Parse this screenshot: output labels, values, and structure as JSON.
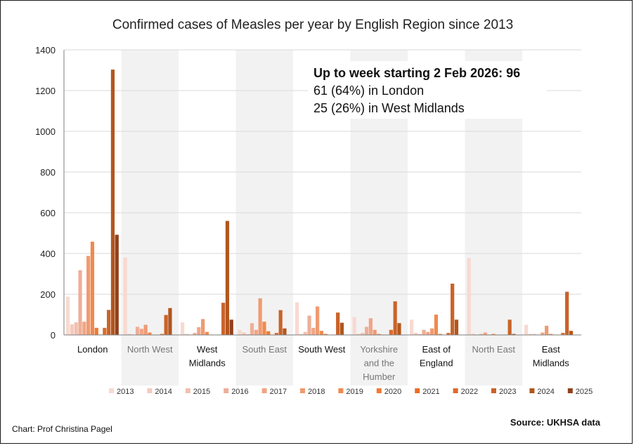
{
  "chart_data": {
    "type": "bar",
    "title": "Confirmed cases of Measles per year by English Region since 2013",
    "xlabel": "",
    "ylabel": "",
    "ylim": [
      0,
      1400
    ],
    "yticks": [
      0,
      200,
      400,
      600,
      800,
      1000,
      1200,
      1400
    ],
    "grid": true,
    "legend_position": "bottom",
    "categories": [
      "London",
      "North West",
      "West Midlands",
      "South East",
      "South West",
      "Yorkshire and the Humber",
      "East of England",
      "North East",
      "East Midlands"
    ],
    "category_lines": [
      [
        "London"
      ],
      [
        "North West"
      ],
      [
        "West",
        "Midlands"
      ],
      [
        "South East"
      ],
      [
        "South West"
      ],
      [
        "Yorkshire",
        "and the",
        "Humber"
      ],
      [
        "East of",
        "England"
      ],
      [
        "North East"
      ],
      [
        "East",
        "Midlands"
      ]
    ],
    "series": [
      {
        "name": "2013",
        "color": "#f8d9d0",
        "values": [
          188,
          380,
          62,
          25,
          160,
          88,
          75,
          378,
          50
        ]
      },
      {
        "name": "2014",
        "color": "#f4cabd",
        "values": [
          52,
          5,
          5,
          12,
          5,
          5,
          10,
          5,
          5
        ]
      },
      {
        "name": "2015",
        "color": "#f1c0ae",
        "values": [
          62,
          2,
          2,
          4,
          15,
          10,
          5,
          2,
          5
        ]
      },
      {
        "name": "2016",
        "color": "#eeae98",
        "values": [
          318,
          40,
          10,
          58,
          95,
          40,
          25,
          5,
          2
        ]
      },
      {
        "name": "2017",
        "color": "#f1a585",
        "values": [
          65,
          30,
          38,
          25,
          35,
          82,
          15,
          12,
          12
        ]
      },
      {
        "name": "2018",
        "color": "#ef9a72",
        "values": [
          388,
          50,
          78,
          180,
          140,
          25,
          32,
          2,
          45
        ]
      },
      {
        "name": "2019",
        "color": "#f08a4e",
        "values": [
          458,
          12,
          15,
          65,
          20,
          5,
          100,
          5,
          5
        ]
      },
      {
        "name": "2020",
        "color": "#f07a32",
        "values": [
          35,
          2,
          2,
          18,
          5,
          2,
          5,
          2,
          2
        ]
      },
      {
        "name": "2021",
        "color": "#ec6d25",
        "values": [
          2,
          0,
          0,
          2,
          0,
          0,
          0,
          0,
          0
        ]
      },
      {
        "name": "2022",
        "color": "#de6a2a",
        "values": [
          35,
          5,
          2,
          10,
          2,
          25,
          10,
          2,
          10
        ]
      },
      {
        "name": "2023",
        "color": "#c96329",
        "values": [
          123,
          98,
          158,
          122,
          110,
          165,
          252,
          75,
          212
        ]
      },
      {
        "name": "2024",
        "color": "#b2561e",
        "values": [
          1303,
          132,
          560,
          32,
          60,
          58,
          75,
          5,
          20
        ]
      },
      {
        "name": "2025",
        "color": "#91401c",
        "values": [
          492,
          0,
          75,
          0,
          0,
          0,
          0,
          0,
          0
        ]
      }
    ],
    "annotation": {
      "line1": "Up to week starting 2 Feb 2026: 96",
      "line2": "61 (64%) in London",
      "line3": "25 (26%) in West Midlands"
    }
  },
  "footer": {
    "credit": "Chart: Prof Christina Pagel",
    "source": "Source: UKHSA data"
  },
  "colors": {
    "shade": "#f2f2f2",
    "grid": "#d9d9d9",
    "axis": "#7f7f7f",
    "muted_label": "#767676"
  }
}
